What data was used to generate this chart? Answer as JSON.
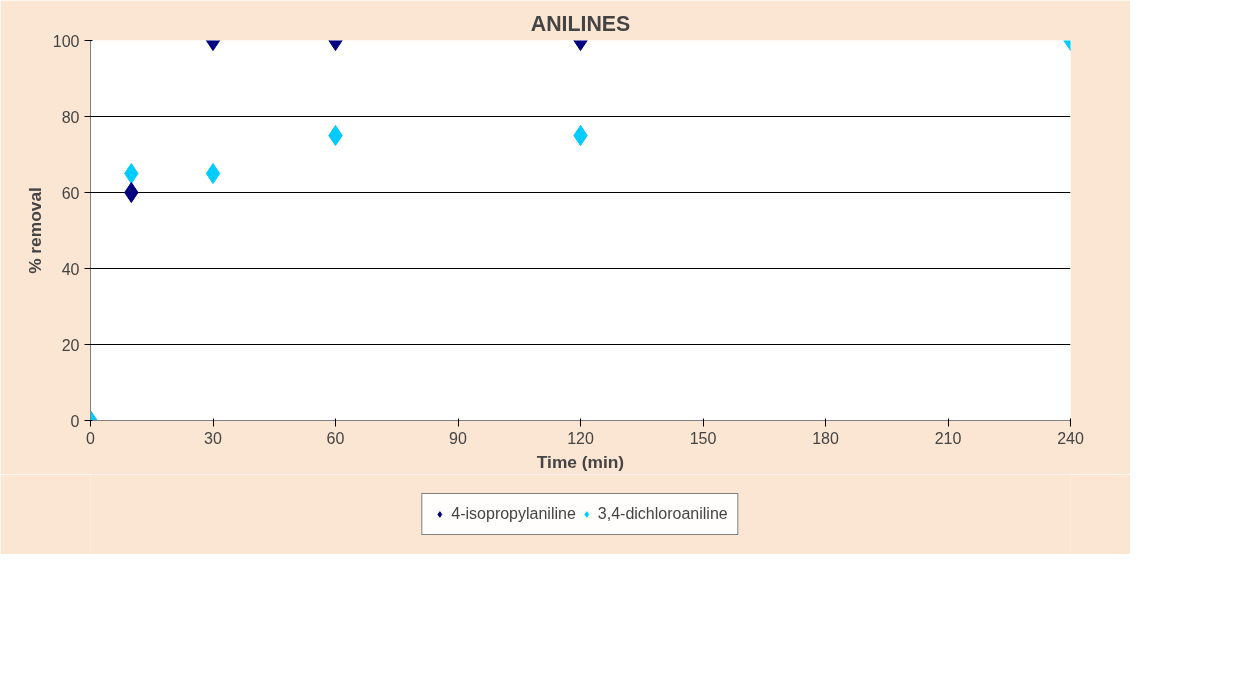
{
  "chart_data": {
    "type": "scatter",
    "title": "ANILINES",
    "xlabel": "Time (min)",
    "ylabel": "% removal",
    "x": [
      0,
      10,
      30,
      60,
      120,
      240
    ],
    "series": [
      {
        "name": "4-isopropylaniline",
        "color": "#000080",
        "values": [
          null,
          60,
          100,
          100,
          100,
          null
        ]
      },
      {
        "name": "3,4-dichloroaniline",
        "color": "#00ccff",
        "values": [
          0,
          65,
          65,
          75,
          75,
          100
        ]
      }
    ],
    "xlim": [
      0,
      240
    ],
    "xticks": [
      0,
      30,
      60,
      90,
      120,
      150,
      180,
      210,
      240
    ],
    "ylim": [
      0,
      100
    ],
    "yticks": [
      0,
      20,
      40,
      60,
      80,
      100
    ],
    "grid": "y",
    "legend": "bottom",
    "marker": "diamond"
  }
}
